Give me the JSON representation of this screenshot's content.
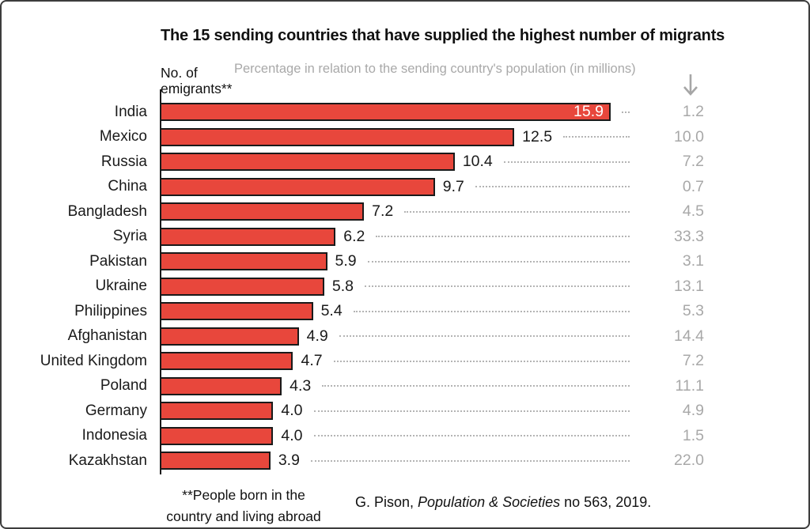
{
  "header": {
    "title": "The 15 sending countries that have supplied the highest number of migrants",
    "subtitle": "Percentage in relation to the sending country's population (in millions)",
    "left_axis_label_line1": "No. of",
    "left_axis_label_line2": "emigrants**"
  },
  "icons": {
    "down_arrow_icon": "↓"
  },
  "chart_data": {
    "type": "bar",
    "orientation": "horizontal",
    "title": "The 15 sending countries that have supplied the highest number of migrants",
    "categories": [
      "India",
      "Mexico",
      "Russia",
      "China",
      "Bangladesh",
      "Syria",
      "Pakistan",
      "Ukraine",
      "Philippines",
      "Afghanistan",
      "United Kingdom",
      "Poland",
      "Germany",
      "Indonesia",
      "Kazakhstan"
    ],
    "series": [
      {
        "name": "No. of emigrants (millions)",
        "values": [
          15.9,
          12.5,
          10.4,
          9.7,
          7.2,
          6.2,
          5.9,
          5.8,
          5.4,
          4.9,
          4.7,
          4.3,
          4.0,
          4.0,
          3.9
        ]
      },
      {
        "name": "Percentage in relation to the sending country's population",
        "values": [
          1.2,
          10.0,
          7.2,
          0.7,
          4.5,
          33.3,
          3.1,
          13.1,
          5.3,
          14.4,
          7.2,
          11.1,
          4.9,
          1.5,
          22.0
        ]
      }
    ],
    "xlim": [
      0,
      16.5
    ],
    "grid": false,
    "value_labels_shown": true,
    "legend_position": "none"
  },
  "colors": {
    "bar": "#E8473C",
    "bar_border": "#1A1A1A",
    "muted_text": "#A8A8A8",
    "text": "#111111"
  },
  "footer": {
    "footnote_line1": "**People born in the",
    "footnote_line2": "country and living abroad",
    "citation_prefix": "G. Pison, ",
    "citation_italic": "Population & Societies",
    "citation_suffix": " no 563, 2019."
  }
}
